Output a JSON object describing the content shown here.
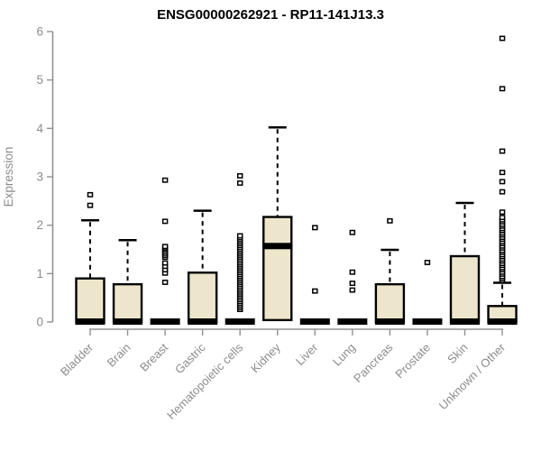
{
  "page": {
    "background": "#ffffff"
  },
  "chart_data": {
    "type": "boxplot",
    "title": "ENSG00000262921 - RP11-141J13.3",
    "ylabel": "Expression",
    "xlabel": "",
    "ylim": [
      0,
      6
    ],
    "yticks": [
      0,
      1,
      2,
      3,
      4,
      5,
      6
    ],
    "grid": false,
    "legend": false,
    "colors": {
      "box_fill": "#EDE6CD",
      "box_border": "#000000",
      "median": "#000000",
      "whisker": "#000000",
      "outlier_stroke": "#000000",
      "outlier_fill": "#FFFFFF",
      "axis": "#929292",
      "tick_label": "#8c8c8c",
      "title_color": "#000000"
    },
    "categories": [
      "Bladder",
      "Brain",
      "Breast",
      "Gastric",
      "Hematopoietic cells",
      "Kidney",
      "Liver",
      "Lung",
      "Pancreas",
      "Prostate",
      "Skin",
      "Unknown / Other"
    ],
    "series": [
      {
        "category": "Bladder",
        "q1": 0,
        "median": 0,
        "q3": 0.9,
        "whisker_low": 0,
        "whisker_high": 2.1,
        "outliers": [
          2.41,
          2.63
        ]
      },
      {
        "category": "Brain",
        "q1": 0,
        "median": 0,
        "q3": 0.78,
        "whisker_low": 0,
        "whisker_high": 1.69,
        "outliers": []
      },
      {
        "category": "Breast",
        "q1": 0,
        "median": 0,
        "q3": 0,
        "whisker_low": 0,
        "whisker_high": 0,
        "outliers": [
          0.82,
          1.01,
          1.08,
          1.15,
          1.22,
          1.34,
          1.38,
          1.42,
          1.46,
          1.5,
          1.53,
          1.56,
          2.08,
          2.93
        ]
      },
      {
        "category": "Gastric",
        "q1": 0,
        "median": 0,
        "q3": 1.02,
        "whisker_low": 0,
        "whisker_high": 2.3,
        "outliers": []
      },
      {
        "category": "Hematopoietic cells",
        "q1": 0,
        "median": 0,
        "q3": 0,
        "whisker_low": 0,
        "whisker_high": 0,
        "outliers": [
          0.26,
          0.3,
          0.34,
          0.38,
          0.42,
          0.46,
          0.5,
          0.54,
          0.58,
          0.62,
          0.66,
          0.7,
          0.74,
          0.78,
          0.82,
          0.86,
          0.9,
          0.94,
          0.98,
          1.02,
          1.06,
          1.1,
          1.14,
          1.18,
          1.22,
          1.26,
          1.3,
          1.34,
          1.38,
          1.42,
          1.46,
          1.5,
          1.54,
          1.58,
          1.62,
          1.66,
          1.7,
          1.74,
          1.78,
          2.87,
          3.02
        ]
      },
      {
        "category": "Kidney",
        "q1": 0.04,
        "median": 1.56,
        "q3": 2.17,
        "whisker_low": 0,
        "whisker_high": 4.02,
        "outliers": []
      },
      {
        "category": "Liver",
        "q1": 0,
        "median": 0,
        "q3": 0,
        "whisker_low": 0,
        "whisker_high": 0,
        "outliers": [
          0.64,
          1.95
        ]
      },
      {
        "category": "Lung",
        "q1": 0,
        "median": 0,
        "q3": 0,
        "whisker_low": 0,
        "whisker_high": 0,
        "outliers": [
          0.66,
          0.8,
          1.03,
          1.85
        ]
      },
      {
        "category": "Pancreas",
        "q1": 0,
        "median": 0,
        "q3": 0.78,
        "whisker_low": 0,
        "whisker_high": 1.49,
        "outliers": [
          2.09
        ]
      },
      {
        "category": "Prostate",
        "q1": 0,
        "median": 0,
        "q3": 0,
        "whisker_low": 0,
        "whisker_high": 0,
        "outliers": [
          1.23
        ]
      },
      {
        "category": "Skin",
        "q1": 0,
        "median": 0,
        "q3": 1.36,
        "whisker_low": 0,
        "whisker_high": 2.46,
        "outliers": []
      },
      {
        "category": "Unknown / Other",
        "q1": 0,
        "median": 0,
        "q3": 0.33,
        "whisker_low": 0,
        "whisker_high": 0.81,
        "outliers": [
          0.86,
          0.9,
          0.94,
          0.99,
          1.03,
          1.08,
          1.12,
          1.17,
          1.21,
          1.26,
          1.3,
          1.35,
          1.39,
          1.44,
          1.48,
          1.53,
          1.57,
          1.62,
          1.66,
          1.71,
          1.75,
          1.8,
          1.84,
          1.89,
          1.93,
          1.98,
          2.02,
          2.07,
          2.11,
          2.16,
          2.27,
          2.69,
          2.9,
          3.09,
          3.53,
          4.82,
          5.86
        ]
      }
    ]
  }
}
